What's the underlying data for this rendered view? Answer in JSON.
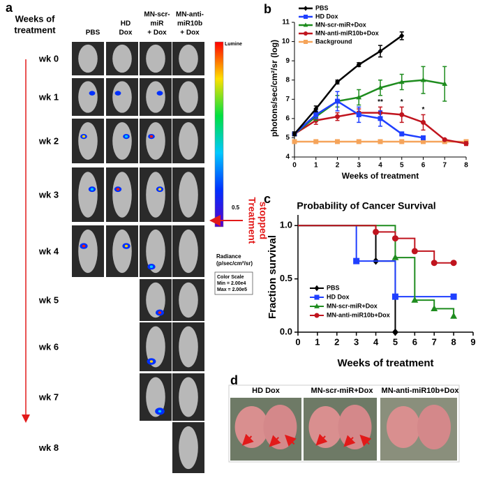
{
  "panels": {
    "a": "a",
    "b": "b",
    "c": "c",
    "d": "d"
  },
  "panel_a": {
    "row_title": [
      "Weeks of",
      "treatment"
    ],
    "headers": [
      [
        "PBS"
      ],
      [
        "HD",
        "Dox"
      ],
      [
        "MN-scr-",
        "miR",
        "+ Dox"
      ],
      [
        "MN-anti-",
        "miR10b",
        "+ Dox"
      ]
    ],
    "rows": [
      "wk 0",
      "wk 1",
      "wk 2",
      "wk 3",
      "wk 4",
      "wk 5",
      "wk 6",
      "wk 7",
      "wk 8"
    ],
    "colorbar": {
      "top_label": "Lumine",
      "tick_label": "0.5",
      "radiance": "Radiance",
      "units": "(p/sec/cm²/sr)",
      "scale_title": "Color Scale",
      "min": "Min = 2.00e4",
      "max": "Max = 2.00e5"
    },
    "treatment_note": [
      "Treatment",
      "stopped"
    ]
  },
  "panel_d": {
    "labels": [
      "HD Dox",
      "MN-scr-miR+Dox",
      "MN-anti-miR10b+Dox"
    ]
  },
  "chart_data": [
    {
      "type": "line",
      "x_label": "Weeks of treatment",
      "y_label": "photons/sec/cm²/sr (log)",
      "x": [
        0,
        1,
        2,
        3,
        4,
        5,
        6,
        7,
        8
      ],
      "xlim": [
        0,
        8
      ],
      "xticks": [
        0,
        1,
        2,
        3,
        4,
        5,
        6,
        7,
        8
      ],
      "ylim": [
        4,
        11
      ],
      "yticks": [
        4,
        5,
        6,
        7,
        8,
        9,
        10,
        11
      ],
      "legend": "top-left",
      "series": [
        {
          "name": "PBS",
          "color": "#000000",
          "marker": "diamond",
          "values": [
            5.2,
            6.5,
            7.9,
            8.8,
            9.5,
            10.3,
            null,
            null,
            null
          ],
          "errors": [
            0.1,
            0.15,
            0.1,
            0.1,
            0.3,
            0.2,
            null,
            null,
            null
          ]
        },
        {
          "name": "HD Dox",
          "color": "#1f3fff",
          "marker": "square",
          "values": [
            5.2,
            6.2,
            6.9,
            6.2,
            6.0,
            5.2,
            5.0,
            null,
            null
          ],
          "errors": [
            0.1,
            0.2,
            0.5,
            0.4,
            0.4,
            0.1,
            0.05,
            null,
            null
          ]
        },
        {
          "name": "MN-scr-miR+Dox",
          "color": "#1e8c1e",
          "marker": "triangle",
          "values": [
            5.2,
            6.1,
            6.9,
            7.1,
            7.6,
            7.9,
            8.0,
            7.8,
            null
          ],
          "errors": [
            0.1,
            0.2,
            0.3,
            0.4,
            0.4,
            0.4,
            0.7,
            0.9,
            null
          ]
        },
        {
          "name": "MN-anti-miR10b+Dox",
          "color": "#c0141e",
          "marker": "circle",
          "values": [
            5.2,
            5.9,
            6.1,
            6.3,
            6.3,
            6.2,
            5.8,
            4.9,
            4.7
          ],
          "errors": [
            0.1,
            0.2,
            0.2,
            0.2,
            0.3,
            0.4,
            0.4,
            0.05,
            0.1
          ]
        },
        {
          "name": "Background",
          "color": "#f5a45a",
          "marker": "square",
          "values": [
            4.8,
            4.8,
            4.8,
            4.8,
            4.8,
            4.8,
            4.8,
            4.8,
            4.8
          ],
          "errors": [
            0.05,
            0.05,
            0.05,
            0.05,
            0.05,
            0.05,
            0.05,
            0.05,
            0.05
          ]
        }
      ],
      "annotations": [
        {
          "text": "**",
          "x": 4
        },
        {
          "text": "*",
          "x": 5
        },
        {
          "text": "*",
          "x": 6
        }
      ]
    },
    {
      "type": "step",
      "title": "Probability of Cancer Survival",
      "x_label": "Weeks of treatment",
      "y_label": "Fraction survival",
      "xlim": [
        0,
        9
      ],
      "xticks": [
        0,
        1,
        2,
        3,
        4,
        5,
        6,
        7,
        8,
        9
      ],
      "ylim": [
        0,
        1.1
      ],
      "yticks": [
        {
          "value": 0,
          "label": "0.0"
        },
        {
          "value": 0.5,
          "label": "0.5"
        },
        {
          "value": 1,
          "label": "1.0"
        }
      ],
      "legend": "bottom-left",
      "series": [
        {
          "name": "PBS",
          "color": "#000000",
          "marker": "diamond",
          "x": [
            0,
            4,
            5
          ],
          "values": [
            1,
            0.667,
            0
          ]
        },
        {
          "name": "HD Dox",
          "color": "#1f3fff",
          "marker": "square",
          "x": [
            0,
            3,
            5,
            8
          ],
          "values": [
            1,
            0.667,
            0.333,
            0.333
          ]
        },
        {
          "name": "MN-scr-miR+Dox",
          "color": "#1e8c1e",
          "marker": "triangle",
          "x": [
            0,
            5,
            6,
            7,
            8
          ],
          "values": [
            1,
            0.7,
            0.3,
            0.22,
            0.15
          ]
        },
        {
          "name": "MN-anti-miR10b+Dox",
          "color": "#c0141e",
          "marker": "circle",
          "x": [
            0,
            4,
            5,
            6,
            7,
            8
          ],
          "values": [
            1,
            0.94,
            0.88,
            0.76,
            0.65,
            0.65
          ]
        }
      ]
    }
  ]
}
